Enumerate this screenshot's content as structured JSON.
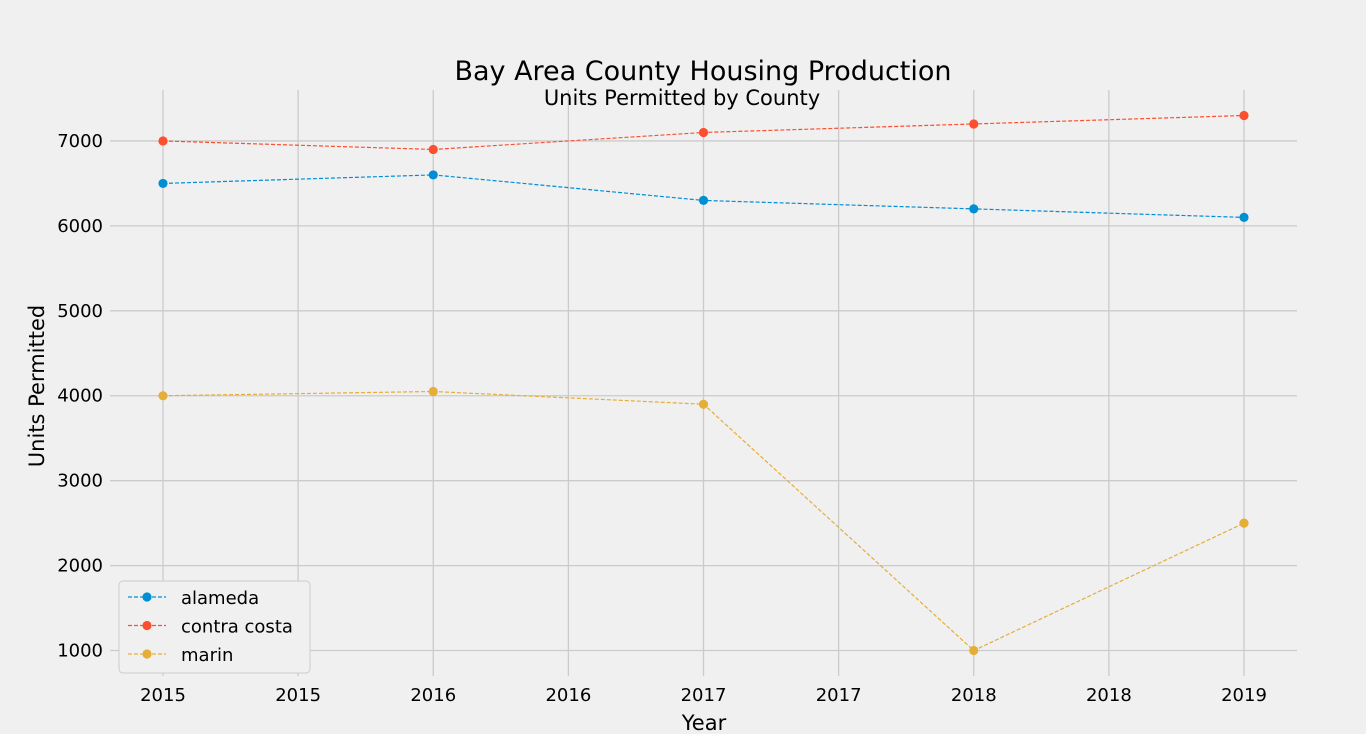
{
  "chart_data": {
    "type": "line",
    "title": "Bay Area County Housing Production",
    "subtitle": "Units Permitted by County",
    "xlabel": "Year",
    "ylabel": "Units Permitted",
    "x_tick_labels": [
      "2015",
      "2015",
      "2016",
      "2016",
      "2017",
      "2017",
      "2018",
      "2018",
      "2019"
    ],
    "x": [
      2015,
      2016,
      2017,
      2018,
      2019
    ],
    "y_ticks": [
      1000,
      2000,
      3000,
      4000,
      5000,
      6000,
      7000
    ],
    "ylim": [
      700,
      7600
    ],
    "grid": true,
    "legend_position": "lower-left",
    "series": [
      {
        "name": "alameda",
        "color": "#008fd5",
        "values": [
          6500,
          6600,
          6300,
          6200,
          6100
        ]
      },
      {
        "name": "contra costa",
        "color": "#fc4f30",
        "values": [
          7000,
          6900,
          7100,
          7200,
          7300
        ]
      },
      {
        "name": "marin",
        "color": "#e5ae38",
        "values": [
          4000,
          4050,
          3900,
          1000,
          2500
        ]
      }
    ]
  }
}
